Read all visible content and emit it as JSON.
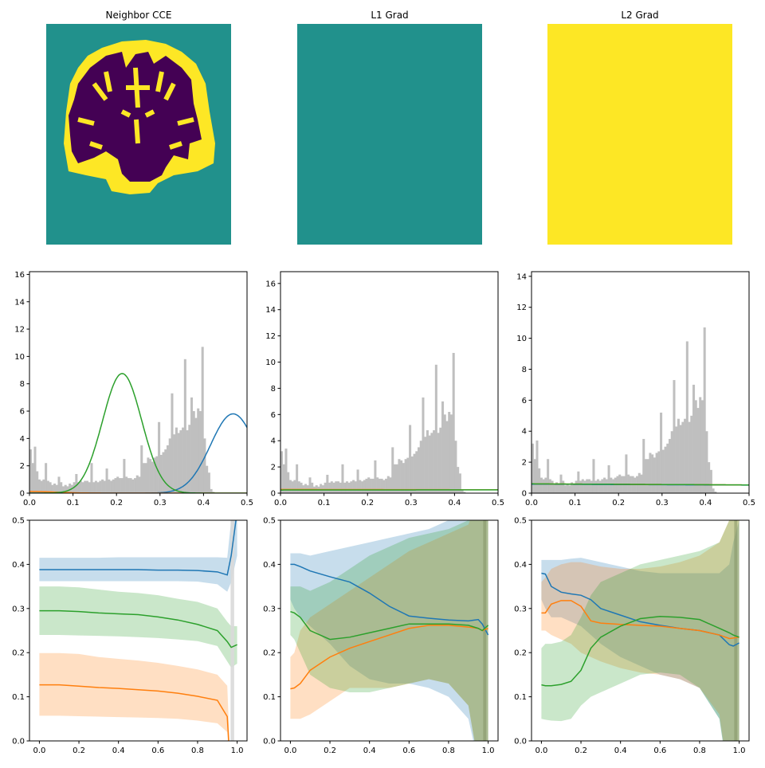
{
  "colors": {
    "teal": "#21918c",
    "yellow": "#fde725",
    "purple": "#440154",
    "blue": "#1f77b4",
    "orange": "#ff7f0e",
    "green": "#2ca02c",
    "hist": "#bfbfbf",
    "vband": "#d9d9d9"
  },
  "chart_data": [
    {
      "type": "heatmap",
      "title": "Neighbor CCE",
      "description_values": "segmentation map: background 0.5 (teal), tissue classes 0 (purple) and 1 (yellow)",
      "fill": "brain"
    },
    {
      "type": "heatmap",
      "title": "L1 Grad",
      "fill": "teal"
    },
    {
      "type": "heatmap",
      "title": "L2 Grad",
      "fill": "yellow"
    },
    {
      "type": "bar",
      "title": "",
      "xlim": [
        0,
        0.5
      ],
      "ylim": [
        0,
        16.2
      ],
      "xticks": [
        "0.0",
        "0.1",
        "0.2",
        "0.3",
        "0.4",
        "0.5"
      ],
      "yticks": [
        "0",
        "2",
        "4",
        "6",
        "8",
        "10",
        "12",
        "14",
        "16"
      ],
      "curves": [
        {
          "name": "blue",
          "kind": "gauss",
          "mu": 0.468,
          "sigma": 0.052,
          "peak": 5.8
        },
        {
          "name": "orange",
          "kind": "gauss",
          "mu": 0.0,
          "sigma": 0.06,
          "peak": 0.12
        },
        {
          "name": "green",
          "kind": "gauss",
          "mu": 0.213,
          "sigma": 0.045,
          "peak": 8.75
        }
      ]
    },
    {
      "type": "bar",
      "title": "",
      "xlim": [
        0,
        0.5
      ],
      "ylim": [
        0,
        16.9
      ],
      "xticks": [
        "0.0",
        "0.1",
        "0.2",
        "0.3",
        "0.4",
        "0.5"
      ],
      "yticks": [
        "0",
        "2",
        "4",
        "6",
        "8",
        "10",
        "12",
        "14",
        "16"
      ],
      "curves": [
        {
          "name": "orange",
          "kind": "linear",
          "y0": 0.28,
          "y1": 0.26
        },
        {
          "name": "green",
          "kind": "linear",
          "y0": 0.24,
          "y1": 0.25
        }
      ]
    },
    {
      "type": "bar",
      "title": "",
      "xlim": [
        0,
        0.5
      ],
      "ylim": [
        0,
        14.3
      ],
      "xticks": [
        "0.0",
        "0.1",
        "0.2",
        "0.3",
        "0.4",
        "0.5"
      ],
      "yticks": [
        "0",
        "2",
        "4",
        "6",
        "8",
        "10",
        "12",
        "14"
      ],
      "curves": [
        {
          "name": "blue",
          "kind": "linear",
          "y0": 0.58,
          "y1": 0.52
        },
        {
          "name": "orange",
          "kind": "linear",
          "y0": 0.6,
          "y1": 0.53
        },
        {
          "name": "green",
          "kind": "linear",
          "y0": 0.6,
          "y1": 0.53
        }
      ]
    },
    {
      "type": "line",
      "xlim": [
        -0.05,
        1.05
      ],
      "ylim": [
        0,
        0.5
      ],
      "xticks": [
        "0.0",
        "0.2",
        "0.4",
        "0.6",
        "0.8",
        "1.0"
      ],
      "yticks": [
        "0.0",
        "0.1",
        "0.2",
        "0.3",
        "0.4",
        "0.5"
      ],
      "vband": [
        0.967,
        0.985
      ],
      "x": [
        0,
        0.1,
        0.2,
        0.3,
        0.4,
        0.5,
        0.6,
        0.7,
        0.8,
        0.9,
        0.95,
        0.97,
        1.0
      ],
      "series": [
        {
          "name": "blue",
          "mean": [
            0.388,
            0.388,
            0.388,
            0.388,
            0.388,
            0.388,
            0.387,
            0.387,
            0.386,
            0.383,
            0.376,
            0.42,
            0.52
          ],
          "lo": [
            0.362,
            0.362,
            0.362,
            0.362,
            0.362,
            0.362,
            0.362,
            0.362,
            0.361,
            0.355,
            0.338,
            0.36,
            0.42
          ],
          "hi": [
            0.415,
            0.415,
            0.415,
            0.415,
            0.416,
            0.416,
            0.416,
            0.416,
            0.416,
            0.416,
            0.415,
            0.5,
            0.6
          ]
        },
        {
          "name": "green",
          "mean": [
            0.295,
            0.295,
            0.293,
            0.29,
            0.288,
            0.286,
            0.281,
            0.274,
            0.264,
            0.25,
            0.225,
            0.212,
            0.218
          ],
          "lo": [
            0.24,
            0.24,
            0.239,
            0.238,
            0.237,
            0.235,
            0.233,
            0.23,
            0.226,
            0.215,
            0.18,
            0.166,
            0.175
          ],
          "hi": [
            0.35,
            0.35,
            0.348,
            0.343,
            0.338,
            0.335,
            0.33,
            0.322,
            0.315,
            0.3,
            0.27,
            0.26,
            0.26
          ]
        },
        {
          "name": "orange",
          "mean": [
            0.127,
            0.127,
            0.124,
            0.121,
            0.119,
            0.116,
            0.113,
            0.108,
            0.101,
            0.092,
            0.055,
            -0.1,
            -0.1
          ],
          "lo": [
            0.057,
            0.057,
            0.056,
            0.055,
            0.054,
            0.053,
            0.052,
            0.05,
            0.046,
            0.04,
            0.02,
            -0.1,
            -0.1
          ],
          "hi": [
            0.199,
            0.199,
            0.197,
            0.19,
            0.186,
            0.182,
            0.177,
            0.17,
            0.162,
            0.15,
            0.125,
            -0.1,
            -0.1
          ]
        }
      ]
    },
    {
      "type": "line",
      "xlim": [
        -0.05,
        1.05
      ],
      "ylim": [
        0,
        0.5
      ],
      "xticks": [
        "0.0",
        "0.2",
        "0.4",
        "0.6",
        "0.8",
        "1.0"
      ],
      "yticks": [
        "0.0",
        "0.1",
        "0.2",
        "0.3",
        "0.4",
        "0.5"
      ],
      "vband": [
        0.975,
        0.99
      ],
      "x": [
        0,
        0.02,
        0.05,
        0.1,
        0.2,
        0.3,
        0.4,
        0.5,
        0.6,
        0.7,
        0.8,
        0.9,
        0.95,
        0.97,
        1.0
      ],
      "series": [
        {
          "name": "blue",
          "mean": [
            0.4,
            0.4,
            0.395,
            0.385,
            0.372,
            0.36,
            0.335,
            0.305,
            0.283,
            0.278,
            0.274,
            0.272,
            0.275,
            0.265,
            0.24
          ],
          "lo": [
            0.32,
            0.3,
            0.28,
            0.26,
            0.22,
            0.17,
            0.14,
            0.13,
            0.13,
            0.12,
            0.1,
            0.05,
            -0.05,
            -0.1,
            -0.1
          ],
          "hi": [
            0.425,
            0.425,
            0.425,
            0.42,
            0.43,
            0.44,
            0.45,
            0.46,
            0.47,
            0.48,
            0.5,
            0.52,
            0.6,
            0.7,
            0.7
          ]
        },
        {
          "name": "orange",
          "mean": [
            0.118,
            0.12,
            0.13,
            0.16,
            0.19,
            0.21,
            0.225,
            0.24,
            0.255,
            0.262,
            0.262,
            0.258,
            0.255,
            0.25,
            0.255
          ],
          "lo": [
            0.05,
            0.05,
            0.05,
            0.06,
            0.09,
            0.12,
            0.12,
            0.12,
            0.13,
            0.14,
            0.13,
            0.08,
            -0.05,
            -0.1,
            -0.1
          ],
          "hi": [
            0.19,
            0.2,
            0.25,
            0.28,
            0.31,
            0.34,
            0.37,
            0.4,
            0.43,
            0.45,
            0.47,
            0.49,
            0.55,
            0.7,
            0.7
          ]
        },
        {
          "name": "green",
          "mean": [
            0.293,
            0.29,
            0.28,
            0.25,
            0.23,
            0.235,
            0.245,
            0.255,
            0.265,
            0.265,
            0.265,
            0.262,
            0.255,
            0.25,
            0.262
          ],
          "lo": [
            0.24,
            0.23,
            0.2,
            0.15,
            0.12,
            0.11,
            0.11,
            0.12,
            0.13,
            0.14,
            0.13,
            0.08,
            -0.05,
            -0.1,
            -0.1
          ],
          "hi": [
            0.35,
            0.35,
            0.35,
            0.34,
            0.36,
            0.39,
            0.42,
            0.44,
            0.46,
            0.47,
            0.48,
            0.5,
            0.55,
            0.7,
            0.7
          ]
        }
      ]
    },
    {
      "type": "line",
      "xlim": [
        -0.05,
        1.05
      ],
      "ylim": [
        0,
        0.5
      ],
      "xticks": [
        "0.0",
        "0.2",
        "0.4",
        "0.6",
        "0.8",
        "1.0"
      ],
      "yticks": [
        "0.0",
        "0.1",
        "0.2",
        "0.3",
        "0.4",
        "0.5"
      ],
      "vband": [
        0.975,
        0.99
      ],
      "x": [
        0,
        0.02,
        0.05,
        0.1,
        0.15,
        0.2,
        0.25,
        0.3,
        0.4,
        0.5,
        0.6,
        0.7,
        0.8,
        0.9,
        0.95,
        0.97,
        1.0
      ],
      "series": [
        {
          "name": "blue",
          "mean": [
            0.38,
            0.378,
            0.35,
            0.337,
            0.333,
            0.33,
            0.32,
            0.3,
            0.285,
            0.27,
            0.262,
            0.255,
            0.25,
            0.24,
            0.218,
            0.215,
            0.222
          ],
          "lo": [
            0.32,
            0.3,
            0.28,
            0.28,
            0.27,
            0.26,
            0.24,
            0.22,
            0.19,
            0.17,
            0.15,
            0.14,
            0.12,
            0.05,
            -0.1,
            -0.1,
            -0.1
          ],
          "hi": [
            0.41,
            0.41,
            0.41,
            0.41,
            0.413,
            0.415,
            0.41,
            0.405,
            0.395,
            0.385,
            0.38,
            0.38,
            0.38,
            0.38,
            0.4,
            0.45,
            0.5
          ]
        },
        {
          "name": "orange",
          "mean": [
            0.29,
            0.29,
            0.31,
            0.318,
            0.318,
            0.305,
            0.272,
            0.267,
            0.264,
            0.262,
            0.26,
            0.255,
            0.25,
            0.24,
            0.232,
            0.233,
            0.235
          ],
          "lo": [
            0.25,
            0.25,
            0.24,
            0.23,
            0.22,
            0.2,
            0.19,
            0.18,
            0.165,
            0.155,
            0.15,
            0.14,
            0.12,
            0.06,
            -0.1,
            -0.1,
            -0.1
          ],
          "hi": [
            0.36,
            0.37,
            0.39,
            0.4,
            0.405,
            0.405,
            0.4,
            0.395,
            0.39,
            0.39,
            0.395,
            0.405,
            0.42,
            0.45,
            0.5,
            0.7,
            0.7
          ]
        },
        {
          "name": "green",
          "mean": [
            0.127,
            0.125,
            0.125,
            0.128,
            0.135,
            0.16,
            0.21,
            0.235,
            0.26,
            0.277,
            0.282,
            0.28,
            0.275,
            0.255,
            0.245,
            0.24,
            0.235
          ],
          "lo": [
            0.05,
            0.048,
            0.046,
            0.045,
            0.05,
            0.08,
            0.1,
            0.11,
            0.13,
            0.15,
            0.155,
            0.15,
            0.12,
            0.05,
            -0.1,
            -0.1,
            -0.1
          ],
          "hi": [
            0.21,
            0.22,
            0.22,
            0.225,
            0.24,
            0.28,
            0.33,
            0.36,
            0.38,
            0.4,
            0.41,
            0.42,
            0.43,
            0.45,
            0.5,
            0.7,
            0.7
          ]
        }
      ]
    }
  ],
  "histogram": {
    "bin_start": 0.0025,
    "bin_width": 0.005,
    "values": [
      3.2,
      2.2,
      3.4,
      1.6,
      1.0,
      0.9,
      1.0,
      2.2,
      0.9,
      0.8,
      0.6,
      0.7,
      0.6,
      1.2,
      0.8,
      0.5,
      0.6,
      0.5,
      0.7,
      0.6,
      0.8,
      1.4,
      0.8,
      0.9,
      0.8,
      0.9,
      0.9,
      0.8,
      2.2,
      0.8,
      0.9,
      0.8,
      0.9,
      1.0,
      0.9,
      1.8,
      1.0,
      0.9,
      1.0,
      1.1,
      1.2,
      1.1,
      1.1,
      2.5,
      1.2,
      1.1,
      1.1,
      1.0,
      1.1,
      1.3,
      1.2,
      3.5,
      2.2,
      2.2,
      2.6,
      2.5,
      2.3,
      2.6,
      2.7,
      5.2,
      2.8,
      3.0,
      3.2,
      3.5,
      4.0,
      7.3,
      4.3,
      4.8,
      4.4,
      4.6,
      4.8,
      9.8,
      4.6,
      5.0,
      7.0,
      6.0,
      5.5,
      6.2,
      6.0,
      10.7,
      4.0,
      2.0,
      1.5,
      0.3,
      0.1
    ]
  }
}
